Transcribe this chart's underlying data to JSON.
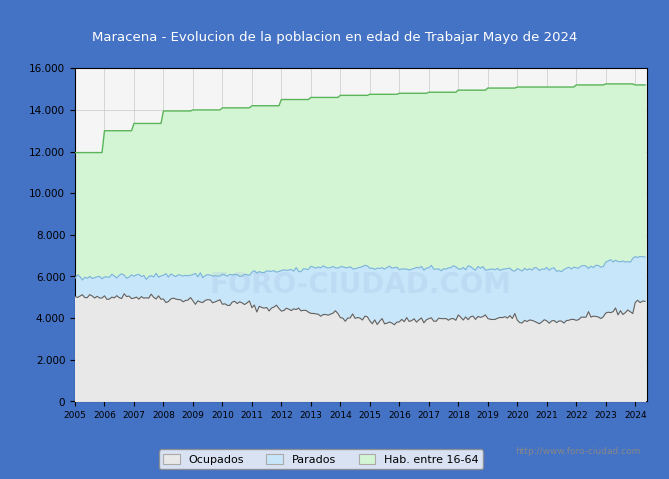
{
  "title": "Maracena - Evolucion de la poblacion en edad de Trabajar Mayo de 2024",
  "title_bg": "#4472c4",
  "title_color": "white",
  "years_x": [
    2005,
    2006,
    2007,
    2008,
    2009,
    2010,
    2011,
    2012,
    2013,
    2014,
    2015,
    2016,
    2017,
    2018,
    2019,
    2020,
    2021,
    2022,
    2023,
    2024
  ],
  "hab_annual": [
    11950,
    13000,
    13350,
    13950,
    14000,
    14100,
    14200,
    14500,
    14600,
    14700,
    14750,
    14800,
    14850,
    14950,
    15050,
    15100,
    15100,
    15200,
    15250,
    15200
  ],
  "parados_top_annual": [
    5950,
    6000,
    6050,
    6050,
    6050,
    6050,
    6200,
    6300,
    6450,
    6450,
    6400,
    6350,
    6400,
    6400,
    6350,
    6300,
    6350,
    6500,
    6750,
    6950
  ],
  "ocupados_annual": [
    5000,
    5050,
    5000,
    4900,
    4800,
    4700,
    4500,
    4400,
    4200,
    4000,
    3800,
    3900,
    3950,
    4000,
    4000,
    3850,
    3850,
    4000,
    4300,
    4800
  ],
  "color_hab": "#d4f5d4",
  "color_hab_line": "#5ab55a",
  "color_parados": "#c8e6fa",
  "color_parados_line": "#7ab4d8",
  "color_ocupados_fill": "#e8e8e8",
  "color_ocupados_line": "#606060",
  "ylim": [
    0,
    16000
  ],
  "ytick_vals": [
    0,
    2000,
    4000,
    6000,
    8000,
    10000,
    12000,
    14000,
    16000
  ],
  "ytick_labels": [
    "0",
    "2.000",
    "4.000",
    "6.000",
    "8.000",
    "10.000",
    "12.000",
    "14.000",
    "16.000"
  ],
  "xtick_years": [
    2005,
    2006,
    2007,
    2008,
    2009,
    2010,
    2011,
    2012,
    2013,
    2014,
    2015,
    2016,
    2017,
    2018,
    2019,
    2020,
    2021,
    2022,
    2023,
    2024
  ],
  "watermark_text": "http://www.foro-ciudad.com",
  "legend_labels": [
    "Ocupados",
    "Parados",
    "Hab. entre 16-64"
  ],
  "fig_bg": "#4472c4",
  "plot_bg": "#f5f5f5",
  "grid_color": "#d0d0d0"
}
